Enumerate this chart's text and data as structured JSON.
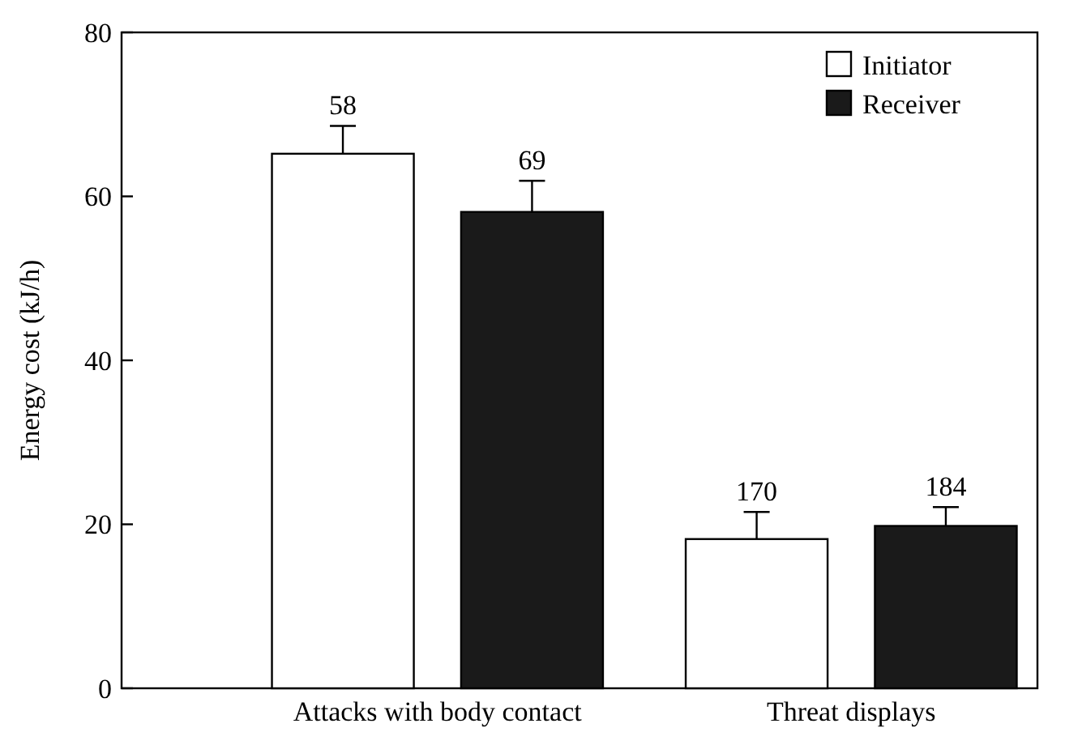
{
  "chart_data": {
    "type": "bar",
    "ylabel": "Energy cost (kJ/h)",
    "categories": [
      "Attacks with body contact",
      "Threat displays"
    ],
    "series": [
      {
        "name": "Initiator",
        "color": "#ffffff",
        "values": [
          65.2,
          18.2
        ],
        "errors": [
          [
            65.2,
            68.6
          ],
          [
            18.2,
            21.5
          ]
        ]
      },
      {
        "name": "Receiver",
        "color": "#1a1a1a",
        "values": [
          58.1,
          19.8
        ],
        "errors": [
          [
            58.1,
            61.9
          ],
          [
            19.8,
            22.1
          ]
        ]
      }
    ],
    "annotations": [
      "58",
      "170",
      "69",
      "184"
    ],
    "ylim": [
      0,
      80
    ],
    "yticks": [
      0,
      20,
      40,
      60,
      80
    ],
    "legend": "top right",
    "grid": false
  }
}
